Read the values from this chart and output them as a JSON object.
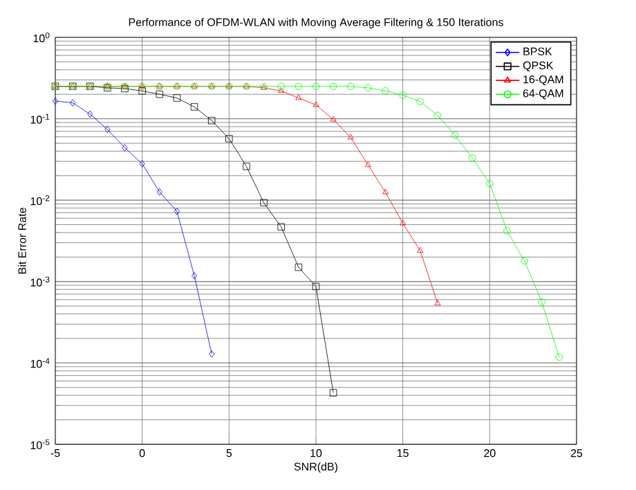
{
  "chart_data": {
    "type": "line",
    "title": "Performance of OFDM-WLAN with Moving Average Filtering & 150 Iterations",
    "xlabel": "SNR(dB)",
    "ylabel": "Bit Error Rate",
    "log": "y",
    "grid": true,
    "legend": "top right",
    "xlim": [
      -5,
      25
    ],
    "xticks": [
      -5,
      0,
      5,
      10,
      15,
      20,
      25
    ],
    "ylim": [
      1e-05,
      1
    ],
    "yticks": [
      {
        "value": 1e-05,
        "label": "10$^{-5}$"
      },
      {
        "value": 0.0001,
        "label": "10$^{-4}$"
      },
      {
        "value": 0.001,
        "label": "10$^{-3}$"
      },
      {
        "value": 0.01,
        "label": "10$^{-2}$"
      },
      {
        "value": 0.1,
        "label": "10$^{-1}$"
      },
      {
        "value": 1,
        "label": "10$^{0}$"
      }
    ],
    "series": [
      {
        "name": "BPSK",
        "color": "#0000ff",
        "marker": "diamond",
        "x": [
          -5,
          -4,
          -3,
          -2,
          -1,
          0,
          1,
          2,
          3,
          4
        ],
        "values": [
          0.165,
          0.157,
          0.114,
          0.074,
          0.044,
          0.028,
          0.0126,
          0.0073,
          0.00118,
          0.000129
        ]
      },
      {
        "name": "QPSK",
        "color": "#000000",
        "marker": "square",
        "x": [
          -5,
          -4,
          -3,
          -2,
          -1,
          0,
          1,
          2,
          3,
          4,
          5,
          6,
          7,
          8,
          9,
          10,
          11
        ],
        "values": [
          0.25,
          0.25,
          0.25,
          0.24,
          0.235,
          0.22,
          0.2,
          0.18,
          0.14,
          0.095,
          0.057,
          0.026,
          0.0093,
          0.0047,
          0.0015,
          0.00087,
          4.3e-05
        ]
      },
      {
        "name": "16-QAM",
        "color": "#ff0000",
        "marker": "triangle",
        "x": [
          -5,
          -4,
          -3,
          -2,
          -1,
          0,
          1,
          2,
          3,
          4,
          5,
          6,
          7,
          8,
          9,
          10,
          11,
          12,
          13,
          14,
          15,
          16,
          17
        ],
        "values": [
          0.25,
          0.25,
          0.25,
          0.25,
          0.25,
          0.25,
          0.25,
          0.25,
          0.25,
          0.25,
          0.25,
          0.25,
          0.24,
          0.22,
          0.18,
          0.148,
          0.098,
          0.059,
          0.027,
          0.0125,
          0.0052,
          0.0024,
          0.00054
        ]
      },
      {
        "name": "64-QAM",
        "color": "#00ff00",
        "marker": "circle",
        "x": [
          -5,
          -4,
          -3,
          -2,
          -1,
          0,
          1,
          2,
          3,
          4,
          5,
          6,
          7,
          8,
          9,
          10,
          11,
          12,
          13,
          14,
          15,
          16,
          17,
          18,
          19,
          20,
          21,
          22,
          23,
          24
        ],
        "values": [
          0.25,
          0.25,
          0.25,
          0.25,
          0.25,
          0.25,
          0.25,
          0.25,
          0.25,
          0.25,
          0.25,
          0.25,
          0.25,
          0.25,
          0.25,
          0.25,
          0.25,
          0.25,
          0.24,
          0.22,
          0.195,
          0.163,
          0.11,
          0.063,
          0.033,
          0.016,
          0.0042,
          0.0018,
          0.00056,
          0.000118
        ]
      }
    ]
  }
}
